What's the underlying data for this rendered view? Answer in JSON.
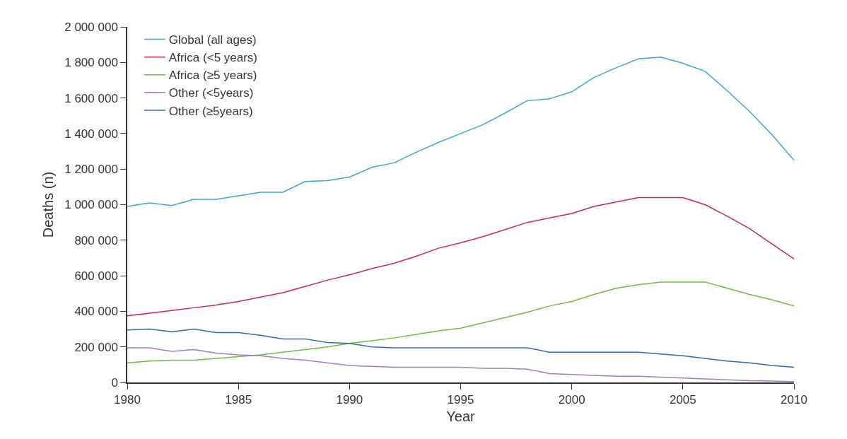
{
  "chart_data": {
    "type": "line",
    "xlabel": "Year",
    "ylabel": "Deaths (n)",
    "x": [
      1980,
      1981,
      1982,
      1983,
      1984,
      1985,
      1986,
      1987,
      1988,
      1989,
      1990,
      1991,
      1992,
      1993,
      1994,
      1995,
      1996,
      1997,
      1998,
      1999,
      2000,
      2001,
      2002,
      2003,
      2004,
      2005,
      2006,
      2007,
      2008,
      2009,
      2010
    ],
    "series": [
      {
        "name": "Global (all ages)",
        "color": "#3aa8cc",
        "values": [
          990000,
          1010000,
          995000,
          1030000,
          1030000,
          1050000,
          1070000,
          1070000,
          1130000,
          1135000,
          1155000,
          1210000,
          1235000,
          1295000,
          1350000,
          1400000,
          1450000,
          1515000,
          1585000,
          1595000,
          1635000,
          1715000,
          1770000,
          1820000,
          1830000,
          1795000,
          1750000,
          1640000,
          1525000,
          1395000,
          1250000
        ]
      },
      {
        "name": "Africa (<5 years)",
        "color": "#c8284a",
        "values": [
          375000,
          390000,
          405000,
          420000,
          435000,
          455000,
          480000,
          505000,
          540000,
          575000,
          605000,
          640000,
          670000,
          710000,
          755000,
          785000,
          820000,
          860000,
          900000,
          925000,
          950000,
          990000,
          1015000,
          1040000,
          1040000,
          1040000,
          1000000,
          935000,
          865000,
          780000,
          695000
        ]
      },
      {
        "name": "Africa (≥5 years)",
        "color": "#6cbf3c",
        "values": [
          110000,
          120000,
          125000,
          125000,
          135000,
          145000,
          155000,
          170000,
          185000,
          200000,
          220000,
          235000,
          250000,
          270000,
          290000,
          305000,
          335000,
          365000,
          395000,
          430000,
          455000,
          495000,
          530000,
          550000,
          565000,
          565000,
          565000,
          530000,
          495000,
          465000,
          430000
        ]
      },
      {
        "name": "Other (<5years)",
        "color": "#a07cc8",
        "values": [
          195000,
          195000,
          175000,
          185000,
          165000,
          155000,
          150000,
          135000,
          125000,
          110000,
          95000,
          90000,
          85000,
          85000,
          85000,
          85000,
          80000,
          80000,
          75000,
          50000,
          45000,
          40000,
          35000,
          35000,
          30000,
          25000,
          20000,
          15000,
          10000,
          8000,
          5000
        ]
      },
      {
        "name": "Other (≥5years)",
        "color": "#2c6ab4",
        "values": [
          295000,
          300000,
          285000,
          300000,
          280000,
          280000,
          265000,
          245000,
          245000,
          225000,
          220000,
          200000,
          195000,
          195000,
          195000,
          195000,
          195000,
          195000,
          195000,
          170000,
          170000,
          170000,
          170000,
          170000,
          160000,
          150000,
          135000,
          120000,
          110000,
          95000,
          85000
        ]
      }
    ],
    "xlim": [
      1980,
      2010
    ],
    "xticks": [
      1980,
      1985,
      1990,
      1995,
      2000,
      2005,
      2010
    ],
    "ylim": [
      0,
      2000000
    ],
    "yticks": [
      {
        "value": 0,
        "label": "0"
      },
      {
        "value": 200000,
        "label": "200 000"
      },
      {
        "value": 400000,
        "label": "400 000"
      },
      {
        "value": 600000,
        "label": "600 000"
      },
      {
        "value": 800000,
        "label": "800 000"
      },
      {
        "value": 1000000,
        "label": "1 000 000"
      },
      {
        "value": 1200000,
        "label": "1 200 000"
      },
      {
        "value": 1400000,
        "label": "1 400 000"
      },
      {
        "value": 1600000,
        "label": "1 600 000"
      },
      {
        "value": 1800000,
        "label": "1 800 000"
      },
      {
        "value": 2000000,
        "label": "2 000 000"
      }
    ],
    "grid": false,
    "legend": "top left",
    "marker": "none",
    "line_style": "solid"
  }
}
